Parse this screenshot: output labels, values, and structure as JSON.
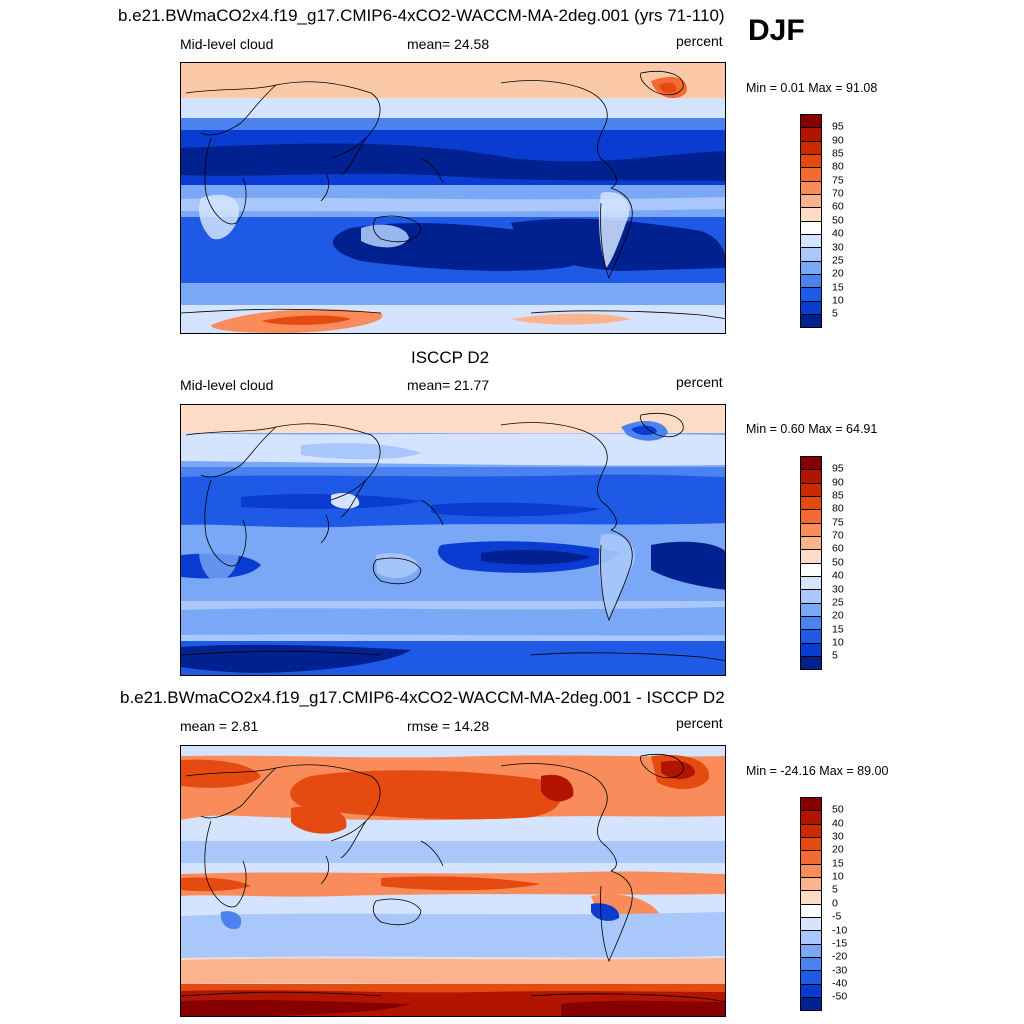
{
  "season": "DJF",
  "panel1": {
    "title": "b.e21.BWmaCO2x4.f19_g17.CMIP6-4xCO2-WACCM-MA-2deg.001 (yrs 71-110)",
    "left_label": "Mid-level cloud",
    "center_label": "mean=  24.58",
    "right_label": "percent",
    "minmax": "Min =   0.01 Max =  91.08"
  },
  "panel2": {
    "title": "ISCCP D2",
    "left_label": "Mid-level cloud",
    "center_label": "mean=  21.77",
    "right_label": "percent",
    "minmax": "Min =   0.60 Max =  64.91"
  },
  "panel3": {
    "title": "b.e21.BWmaCO2x4.f19_g17.CMIP6-4xCO2-WACCM-MA-2deg.001 - ISCCP D2",
    "left_label": "mean =   2.81",
    "center_label": "rmse =  14.28",
    "right_label": "percent",
    "minmax": "Min = -24.16 Max =  89.00"
  },
  "colorbar_abs": {
    "labels": [
      "95",
      "90",
      "85",
      "80",
      "75",
      "70",
      "60",
      "50",
      "40",
      "30",
      "25",
      "20",
      "15",
      "10",
      "5"
    ],
    "colors": [
      "#870000",
      "#b31400",
      "#cc2a00",
      "#e54a10",
      "#f46a33",
      "#f98c5a",
      "#fbb38e",
      "#fddcc6",
      "#ffffff",
      "#d4e4ff",
      "#a9c7fb",
      "#7ba8f6",
      "#4c82f0",
      "#1f5ae6",
      "#0a3cd2",
      "#00218f"
    ]
  },
  "colorbar_diff": {
    "labels": [
      "50",
      "40",
      "30",
      "20",
      "15",
      "10",
      "5",
      "0",
      "-5",
      "-10",
      "-15",
      "-20",
      "-30",
      "-40",
      "-50"
    ],
    "colors": [
      "#870000",
      "#b31400",
      "#cc2a00",
      "#e54a10",
      "#f46a33",
      "#f98c5a",
      "#fbb38e",
      "#fddcc6",
      "#ffffff",
      "#d4e4ff",
      "#a9c7fb",
      "#7ba8f6",
      "#4c82f0",
      "#1f5ae6",
      "#0a3cd2",
      "#00218f"
    ]
  }
}
